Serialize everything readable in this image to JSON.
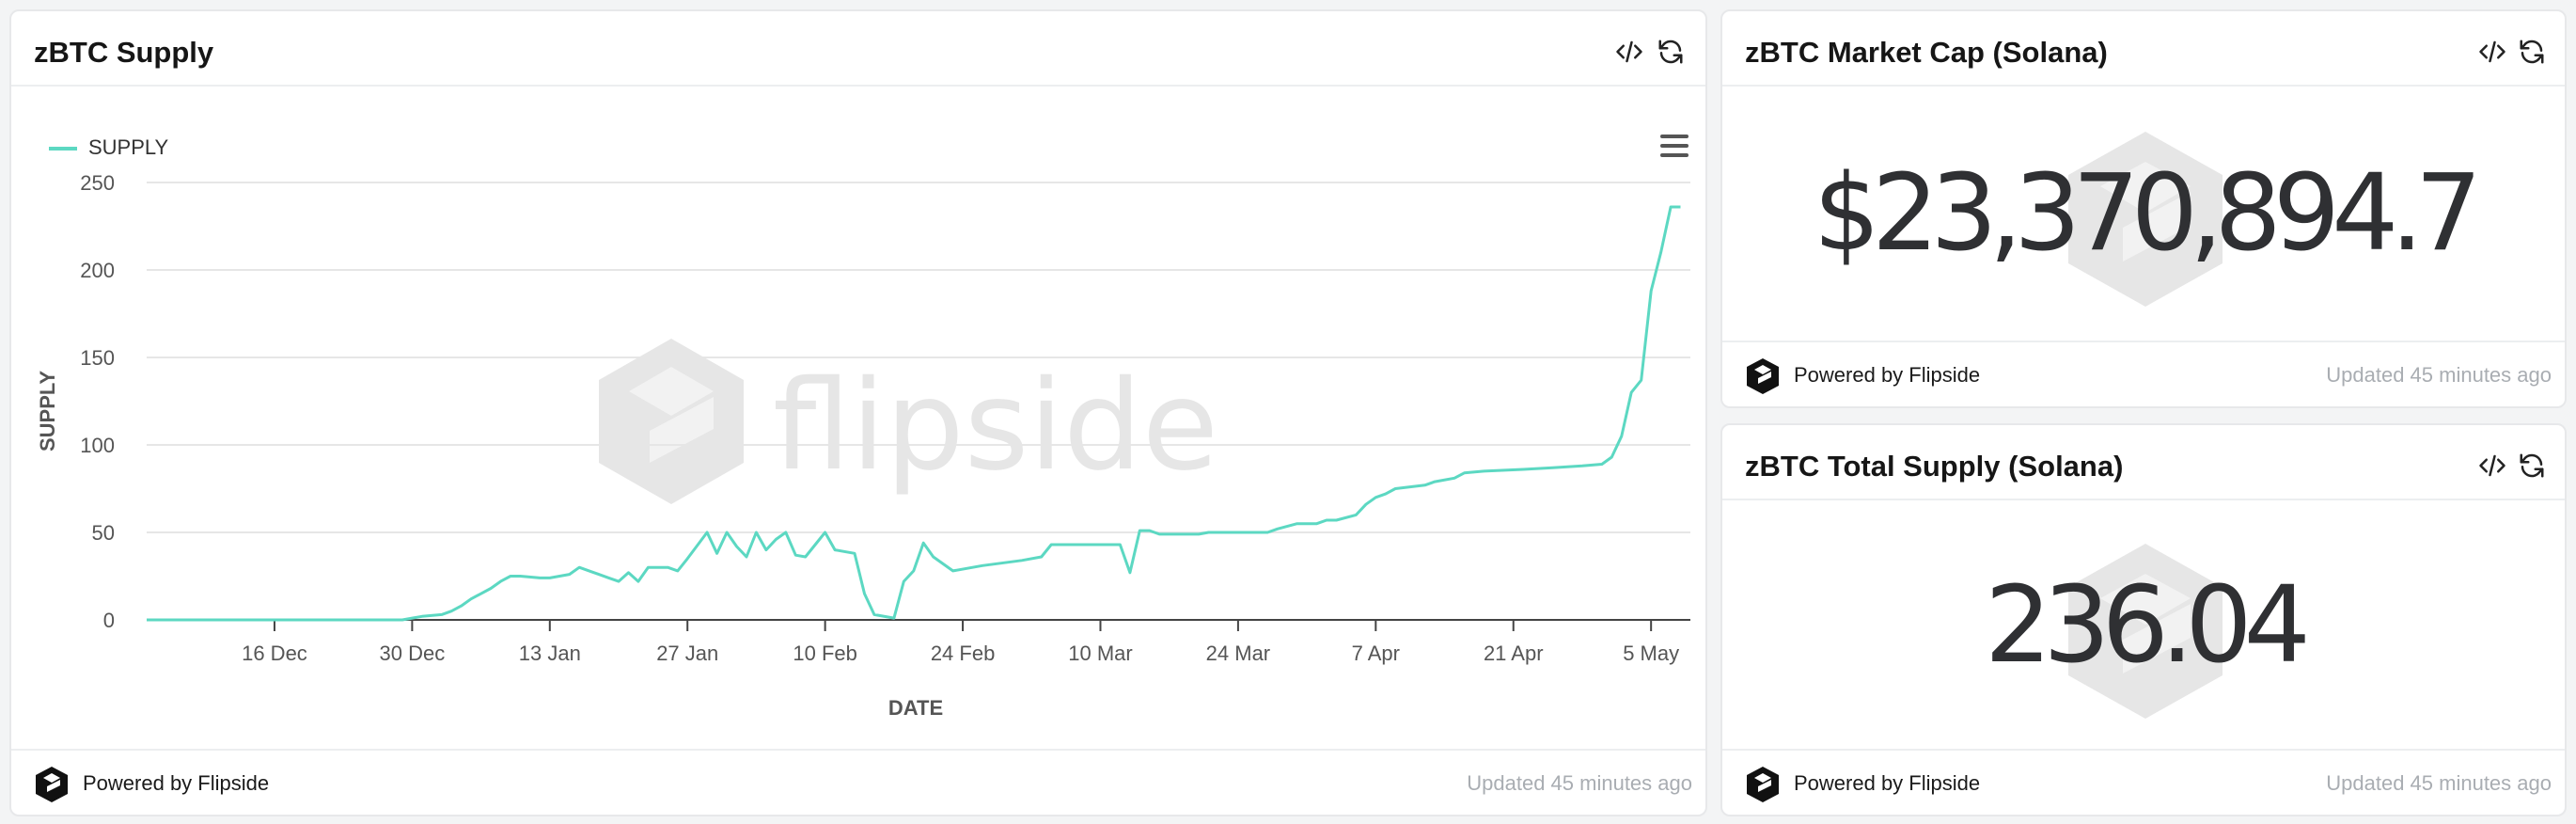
{
  "supply_card": {
    "title": "zBTC Supply",
    "icons": [
      "code-icon",
      "refresh-icon"
    ],
    "menu_icon": "hamburger-menu-icon",
    "watermark": "flipside",
    "footer": {
      "powered_by": "Powered by Flipside",
      "updated": "Updated 45 minutes ago"
    }
  },
  "market_cap_card": {
    "title": "zBTC Market Cap (Solana)",
    "value": "$23,370,894.7",
    "icons": [
      "code-icon",
      "refresh-icon"
    ],
    "footer": {
      "powered_by": "Powered by Flipside",
      "updated": "Updated 45 minutes ago"
    }
  },
  "total_supply_card": {
    "title": "zBTC Total Supply (Solana)",
    "value": "236.04",
    "icons": [
      "code-icon",
      "refresh-icon"
    ],
    "footer": {
      "powered_by": "Powered by Flipside",
      "updated": "Updated 45 minutes ago"
    }
  },
  "colors": {
    "series": "#5cd8c2",
    "grid": "#e6e6e6",
    "watermark": "#e6e6e6",
    "value_text": "#2f3033",
    "muted_text": "#a9adb2"
  },
  "chart_data": {
    "type": "line",
    "title": "",
    "xlabel": "DATE",
    "ylabel": "SUPPLY",
    "ylim": [
      0,
      250
    ],
    "y_ticks": [
      0,
      50,
      100,
      150,
      200,
      250
    ],
    "x_tick_labels": [
      "16 Dec",
      "30 Dec",
      "13 Jan",
      "27 Jan",
      "10 Feb",
      "24 Feb",
      "10 Mar",
      "24 Mar",
      "7 Apr",
      "21 Apr",
      "5 May"
    ],
    "x_tick_dates": [
      "2024-12-16",
      "2024-12-30",
      "2025-01-13",
      "2025-01-27",
      "2025-02-10",
      "2025-02-24",
      "2025-03-10",
      "2025-03-24",
      "2025-04-07",
      "2025-04-21",
      "2025-05-05"
    ],
    "x_range": [
      "2024-12-03",
      "2025-05-09"
    ],
    "grid": "horizontal",
    "legend": "top-left",
    "series": [
      {
        "name": "SUPPLY",
        "points": [
          [
            "2024-12-03",
            0
          ],
          [
            "2024-12-10",
            0
          ],
          [
            "2024-12-20",
            0
          ],
          [
            "2024-12-29",
            0
          ],
          [
            "2024-12-30",
            1
          ],
          [
            "2024-12-31",
            2
          ],
          [
            "2025-01-02",
            3
          ],
          [
            "2025-01-03",
            5
          ],
          [
            "2025-01-04",
            8
          ],
          [
            "2025-01-05",
            12
          ],
          [
            "2025-01-07",
            18
          ],
          [
            "2025-01-08",
            22
          ],
          [
            "2025-01-09",
            25
          ],
          [
            "2025-01-10",
            25
          ],
          [
            "2025-01-12",
            24
          ],
          [
            "2025-01-13",
            24
          ],
          [
            "2025-01-15",
            26
          ],
          [
            "2025-01-16",
            30
          ],
          [
            "2025-01-17",
            28
          ],
          [
            "2025-01-19",
            24
          ],
          [
            "2025-01-20",
            22
          ],
          [
            "2025-01-21",
            27
          ],
          [
            "2025-01-22",
            22
          ],
          [
            "2025-01-23",
            30
          ],
          [
            "2025-01-25",
            30
          ],
          [
            "2025-01-26",
            28
          ],
          [
            "2025-01-27",
            35
          ],
          [
            "2025-01-29",
            50
          ],
          [
            "2025-01-30",
            38
          ],
          [
            "2025-01-31",
            50
          ],
          [
            "2025-02-01",
            42
          ],
          [
            "2025-02-02",
            36
          ],
          [
            "2025-02-03",
            50
          ],
          [
            "2025-02-04",
            40
          ],
          [
            "2025-02-05",
            46
          ],
          [
            "2025-02-06",
            50
          ],
          [
            "2025-02-07",
            37
          ],
          [
            "2025-02-08",
            36
          ],
          [
            "2025-02-10",
            50
          ],
          [
            "2025-02-11",
            40
          ],
          [
            "2025-02-13",
            38
          ],
          [
            "2025-02-14",
            15
          ],
          [
            "2025-02-15",
            3
          ],
          [
            "2025-02-17",
            1
          ],
          [
            "2025-02-18",
            22
          ],
          [
            "2025-02-19",
            28
          ],
          [
            "2025-02-20",
            44
          ],
          [
            "2025-02-21",
            36
          ],
          [
            "2025-02-23",
            28
          ],
          [
            "2025-02-26",
            31
          ],
          [
            "2025-03-02",
            34
          ],
          [
            "2025-03-04",
            36
          ],
          [
            "2025-03-05",
            43
          ],
          [
            "2025-03-08",
            43
          ],
          [
            "2025-03-11",
            43
          ],
          [
            "2025-03-12",
            43
          ],
          [
            "2025-03-13",
            27
          ],
          [
            "2025-03-14",
            51
          ],
          [
            "2025-03-15",
            51
          ],
          [
            "2025-03-16",
            49
          ],
          [
            "2025-03-20",
            49
          ],
          [
            "2025-03-21",
            50
          ],
          [
            "2025-03-27",
            50
          ],
          [
            "2025-03-28",
            52
          ],
          [
            "2025-03-30",
            55
          ],
          [
            "2025-04-01",
            55
          ],
          [
            "2025-04-02",
            57
          ],
          [
            "2025-04-03",
            57
          ],
          [
            "2025-04-05",
            60
          ],
          [
            "2025-04-06",
            66
          ],
          [
            "2025-04-07",
            70
          ],
          [
            "2025-04-08",
            72
          ],
          [
            "2025-04-09",
            75
          ],
          [
            "2025-04-12",
            77
          ],
          [
            "2025-04-13",
            79
          ],
          [
            "2025-04-15",
            81
          ],
          [
            "2025-04-16",
            84
          ],
          [
            "2025-04-18",
            85
          ],
          [
            "2025-04-22",
            86
          ],
          [
            "2025-04-25",
            87
          ],
          [
            "2025-04-28",
            88
          ],
          [
            "2025-04-30",
            89
          ],
          [
            "2025-05-01",
            93
          ],
          [
            "2025-05-02",
            105
          ],
          [
            "2025-05-03",
            130
          ],
          [
            "2025-05-04",
            137
          ],
          [
            "2025-05-05",
            188
          ],
          [
            "2025-05-06",
            210
          ],
          [
            "2025-05-07",
            236
          ],
          [
            "2025-05-08",
            236
          ]
        ]
      }
    ]
  }
}
